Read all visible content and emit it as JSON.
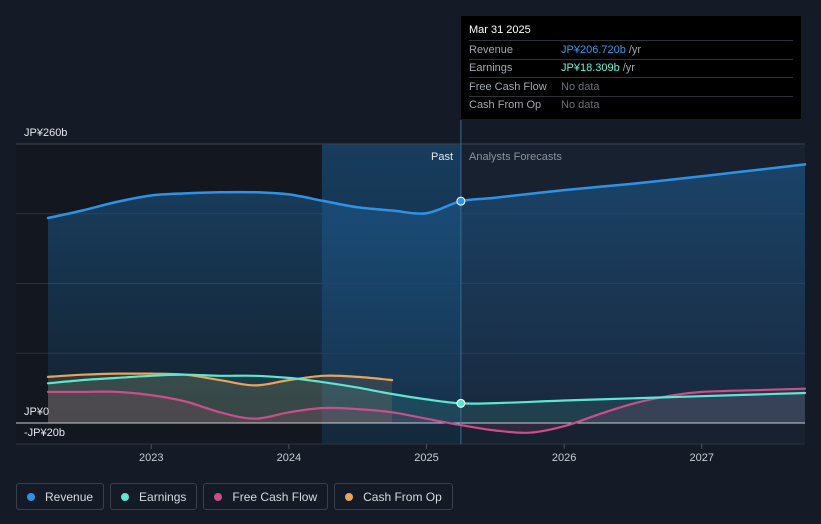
{
  "tooltip": {
    "date": "Mar 31 2025",
    "rows": [
      {
        "label": "Revenue",
        "value": "JP¥206.720b",
        "unit": "/yr",
        "color": "#3b9ae8"
      },
      {
        "label": "Earnings",
        "value": "JP¥18.309b",
        "unit": "/yr",
        "color": "#6ff2d6"
      },
      {
        "label": "Free Cash Flow",
        "value": "No data",
        "unit": "",
        "color": "#6b7078"
      },
      {
        "label": "Cash From Op",
        "value": "No data",
        "unit": "",
        "color": "#6b7078"
      }
    ]
  },
  "legend": [
    {
      "label": "Revenue",
      "color": "#2e93e6"
    },
    {
      "label": "Earnings",
      "color": "#5de6d0"
    },
    {
      "label": "Free Cash Flow",
      "color": "#c94f8a"
    },
    {
      "label": "Cash From Op",
      "color": "#e5a55a"
    }
  ],
  "chart_data": {
    "type": "line",
    "currency": "JP¥",
    "y_axis_labels": [
      "JP¥260b",
      "JP¥0",
      "-JP¥20b"
    ],
    "ylim": [
      -20,
      260
    ],
    "xlim": [
      2022.25,
      2027.75
    ],
    "x_ticks": [
      2023,
      2024,
      2025,
      2026,
      2027
    ],
    "past_label": "Past",
    "forecast_label": "Analysts Forecasts",
    "divider_x": 2025.25,
    "highlight_start_x": 2024.24,
    "series": [
      {
        "name": "Revenue",
        "color": "#2e93e6",
        "points": [
          [
            2022.25,
            191
          ],
          [
            2022.5,
            198
          ],
          [
            2022.75,
            206
          ],
          [
            2023.0,
            212
          ],
          [
            2023.25,
            214
          ],
          [
            2023.5,
            215
          ],
          [
            2023.75,
            215
          ],
          [
            2024.0,
            213
          ],
          [
            2024.25,
            207
          ],
          [
            2024.5,
            201
          ],
          [
            2024.75,
            198
          ],
          [
            2025.0,
            195.5
          ],
          [
            2025.25,
            206.72
          ],
          [
            2025.5,
            210
          ],
          [
            2026.0,
            217
          ],
          [
            2026.5,
            223
          ],
          [
            2027.0,
            230
          ],
          [
            2027.75,
            241
          ]
        ]
      },
      {
        "name": "Earnings",
        "color": "#5de6d0",
        "points": [
          [
            2022.25,
            37
          ],
          [
            2022.5,
            40
          ],
          [
            2022.75,
            42
          ],
          [
            2023.0,
            44
          ],
          [
            2023.25,
            45
          ],
          [
            2023.5,
            44
          ],
          [
            2023.75,
            44
          ],
          [
            2024.0,
            42
          ],
          [
            2024.25,
            38
          ],
          [
            2024.5,
            33
          ],
          [
            2024.75,
            27
          ],
          [
            2025.0,
            22
          ],
          [
            2025.25,
            18.31
          ],
          [
            2025.5,
            18.5
          ],
          [
            2026.0,
            21
          ],
          [
            2026.5,
            23
          ],
          [
            2027.0,
            25
          ],
          [
            2027.75,
            28
          ]
        ]
      },
      {
        "name": "Free Cash Flow",
        "color": "#c94f8a",
        "points": [
          [
            2022.25,
            29
          ],
          [
            2022.5,
            29
          ],
          [
            2022.75,
            29
          ],
          [
            2023.0,
            26
          ],
          [
            2023.25,
            20
          ],
          [
            2023.5,
            10
          ],
          [
            2023.75,
            4
          ],
          [
            2024.0,
            10
          ],
          [
            2024.25,
            14
          ],
          [
            2024.5,
            13
          ],
          [
            2024.75,
            10
          ],
          [
            2025.0,
            4
          ],
          [
            2025.25,
            -2
          ],
          [
            2025.5,
            -7
          ],
          [
            2025.75,
            -9
          ],
          [
            2026.0,
            -3
          ],
          [
            2026.25,
            8
          ],
          [
            2026.5,
            18
          ],
          [
            2026.75,
            25
          ],
          [
            2027.0,
            29
          ],
          [
            2027.5,
            31
          ],
          [
            2027.75,
            32
          ]
        ]
      },
      {
        "name": "Cash From Op",
        "color": "#e5a55a",
        "points": [
          [
            2022.25,
            43
          ],
          [
            2022.5,
            45
          ],
          [
            2022.75,
            46
          ],
          [
            2023.0,
            46
          ],
          [
            2023.25,
            45
          ],
          [
            2023.5,
            40
          ],
          [
            2023.75,
            35
          ],
          [
            2024.0,
            40
          ],
          [
            2024.25,
            44
          ],
          [
            2024.5,
            43
          ],
          [
            2024.75,
            40
          ]
        ]
      }
    ],
    "tooltip_points": [
      {
        "series": "Revenue",
        "x": 2025.25,
        "y": 206.72
      },
      {
        "series": "Earnings",
        "x": 2025.25,
        "y": 18.31
      }
    ]
  }
}
